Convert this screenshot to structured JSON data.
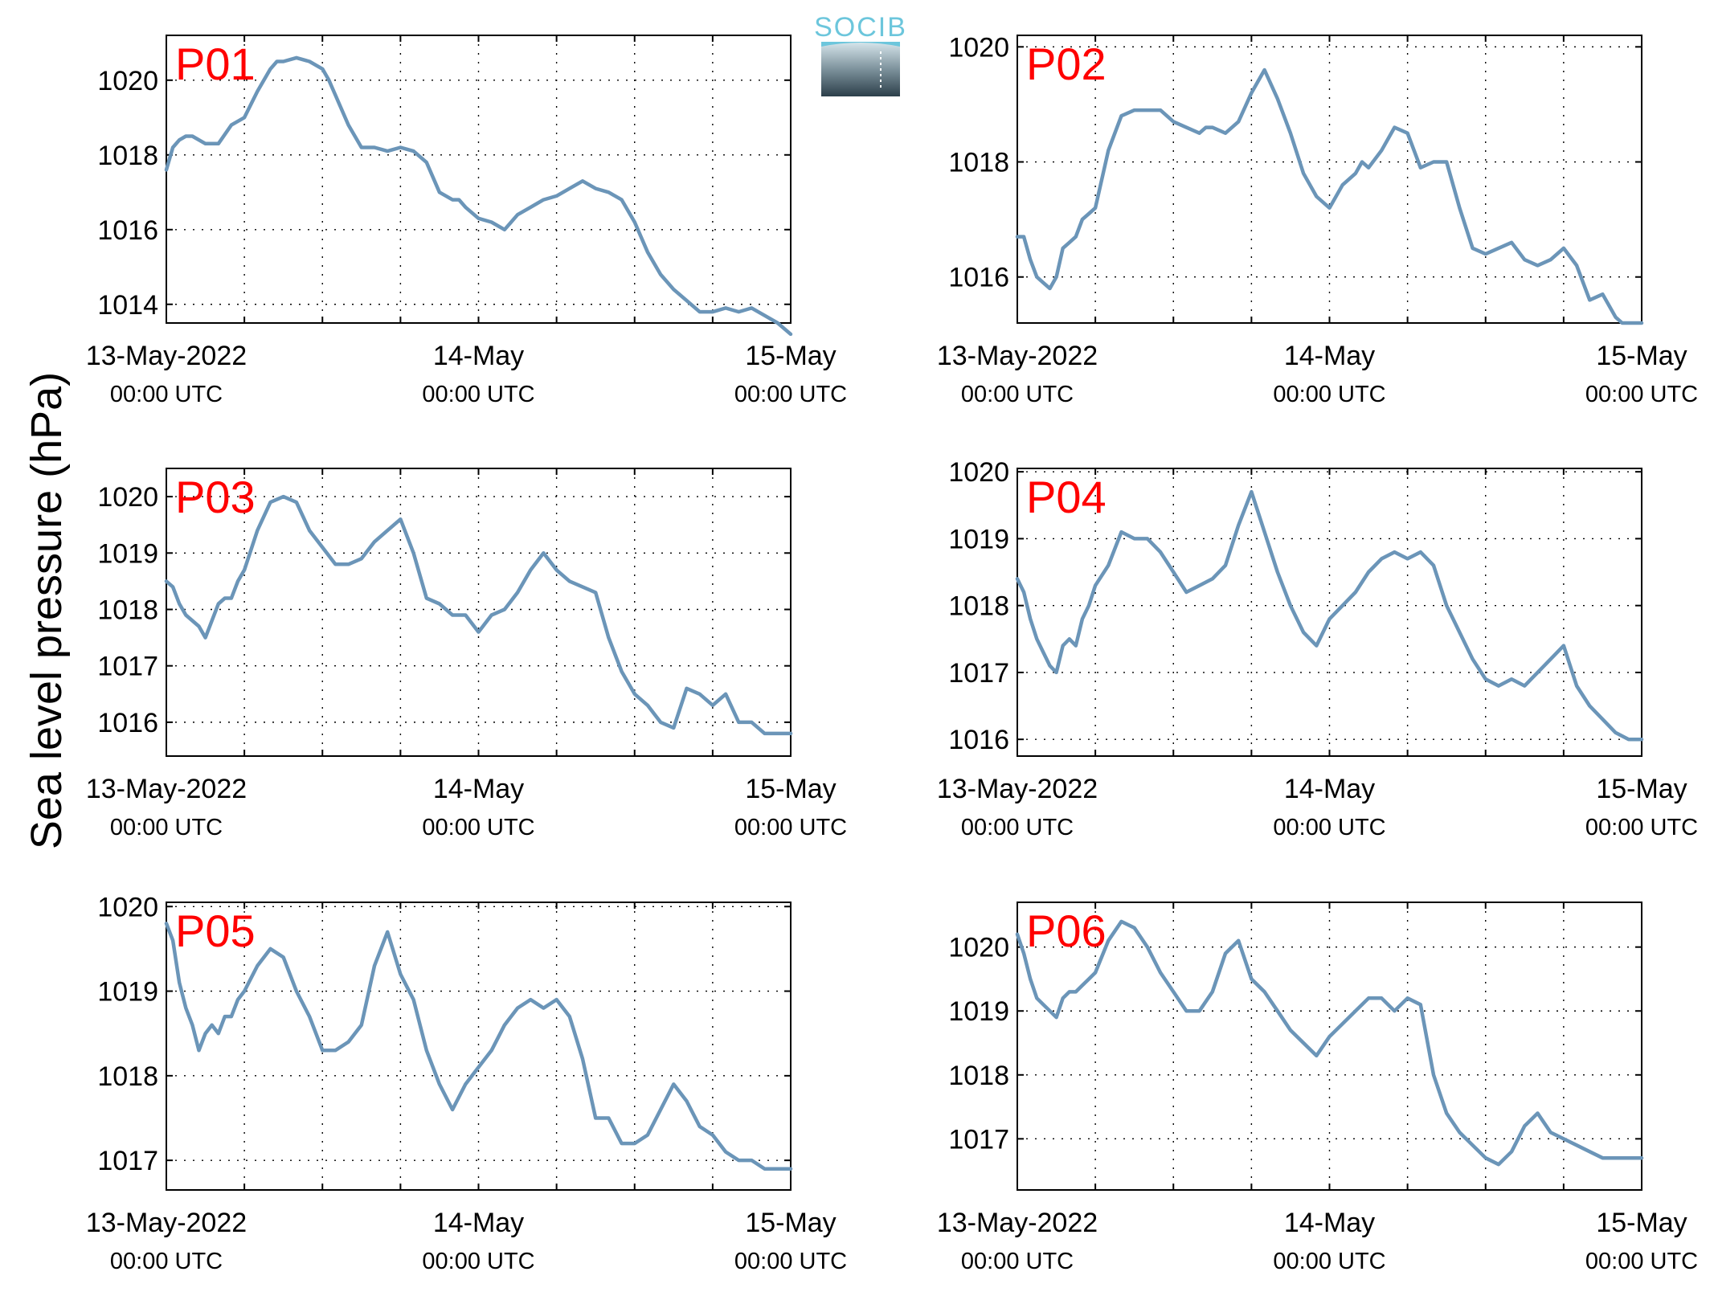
{
  "ylabel": "Sea level pressure (hPa)",
  "logo": {
    "text": "SOCIB"
  },
  "colors": {
    "line": "#6b95b8",
    "panel_label": "#ff0000",
    "grid": "#000000"
  },
  "x_tick_labels": [
    {
      "date": "13-May-2022",
      "time": "00:00 UTC"
    },
    {
      "date": "14-May",
      "time": "00:00 UTC"
    },
    {
      "date": "15-May",
      "time": "00:00 UTC"
    }
  ],
  "chart_data": [
    {
      "type": "line",
      "title": "P01",
      "xlabel": "",
      "ylabel": "Sea level pressure (hPa)",
      "xlim": [
        0,
        48
      ],
      "ylim": [
        1013.5,
        1021.2
      ],
      "yticks": [
        1014,
        1016,
        1018,
        1020
      ],
      "grid": true,
      "series": [
        {
          "x": [
            0,
            0.5,
            1,
            1.5,
            2,
            3,
            4,
            5,
            6,
            7,
            8,
            8.5,
            9,
            10,
            11,
            12,
            12.5,
            13,
            14,
            15,
            16,
            17,
            18,
            19,
            20,
            21,
            22,
            22.5,
            23,
            24,
            25,
            26,
            27,
            28,
            29,
            30,
            31,
            32,
            33,
            34,
            35,
            36,
            37,
            38,
            39,
            40,
            41,
            42,
            43,
            44,
            45,
            46,
            47,
            48
          ],
          "y": [
            1017.6,
            1018.2,
            1018.4,
            1018.5,
            1018.5,
            1018.3,
            1018.3,
            1018.8,
            1019.0,
            1019.7,
            1020.3,
            1020.5,
            1020.5,
            1020.6,
            1020.5,
            1020.3,
            1020.0,
            1019.6,
            1018.8,
            1018.2,
            1018.2,
            1018.1,
            1018.2,
            1018.1,
            1017.8,
            1017.0,
            1016.8,
            1016.8,
            1016.6,
            1016.3,
            1016.2,
            1016.0,
            1016.4,
            1016.6,
            1016.8,
            1016.9,
            1017.1,
            1017.3,
            1017.1,
            1017.0,
            1016.8,
            1016.2,
            1015.4,
            1014.8,
            1014.4,
            1014.1,
            1013.8,
            1013.8,
            1013.9,
            1013.8,
            1013.9,
            1013.7,
            1013.5,
            1013.2
          ]
        }
      ]
    },
    {
      "type": "line",
      "title": "P02",
      "xlabel": "",
      "ylabel": "Sea level pressure (hPa)",
      "xlim": [
        0,
        48
      ],
      "ylim": [
        1015.2,
        1020.2
      ],
      "yticks": [
        1016,
        1018,
        1020
      ],
      "grid": true,
      "series": [
        {
          "x": [
            0,
            0.5,
            1,
            1.5,
            2,
            2.5,
            3,
            3.5,
            4,
            4.5,
            5,
            5.5,
            6,
            7,
            8,
            9,
            10,
            11,
            12,
            13,
            14,
            14.5,
            15,
            16,
            17,
            18,
            19,
            20,
            21,
            22,
            23,
            24,
            25,
            26,
            26.5,
            27,
            28,
            29,
            30,
            31,
            32,
            33,
            34,
            35,
            36,
            37,
            38,
            39,
            40,
            41,
            42,
            43,
            44,
            45,
            46,
            46.5,
            47,
            47.5,
            48
          ],
          "y": [
            1016.7,
            1016.7,
            1016.3,
            1016.0,
            1015.9,
            1015.8,
            1016.0,
            1016.5,
            1016.6,
            1016.7,
            1017.0,
            1017.1,
            1017.2,
            1018.2,
            1018.8,
            1018.9,
            1018.9,
            1018.9,
            1018.7,
            1018.6,
            1018.5,
            1018.6,
            1018.6,
            1018.5,
            1018.7,
            1019.2,
            1019.6,
            1019.1,
            1018.5,
            1017.8,
            1017.4,
            1017.2,
            1017.6,
            1017.8,
            1018.0,
            1017.9,
            1018.2,
            1018.6,
            1018.5,
            1017.9,
            1018.0,
            1018.0,
            1017.2,
            1016.5,
            1016.4,
            1016.5,
            1016.6,
            1016.3,
            1016.2,
            1016.3,
            1016.5,
            1016.2,
            1015.6,
            1015.7,
            1015.3,
            1015.2,
            1015.2,
            1015.2,
            1015.2
          ]
        }
      ]
    },
    {
      "type": "line",
      "title": "P03",
      "xlabel": "",
      "ylabel": "Sea level pressure (hPa)",
      "xlim": [
        0,
        48
      ],
      "ylim": [
        1015.4,
        1020.5
      ],
      "yticks": [
        1016,
        1017,
        1018,
        1019,
        1020
      ],
      "grid": true,
      "series": [
        {
          "x": [
            0,
            0.5,
            1,
            1.5,
            2,
            2.5,
            3,
            3.5,
            4,
            4.5,
            5,
            5.5,
            6,
            7,
            8,
            9,
            10,
            11,
            12,
            13,
            14,
            15,
            16,
            17,
            18,
            19,
            20,
            21,
            22,
            23,
            24,
            25,
            26,
            27,
            28,
            29,
            30,
            31,
            32,
            33,
            34,
            35,
            36,
            37,
            38,
            39,
            40,
            41,
            42,
            43,
            44,
            45,
            46,
            47,
            48
          ],
          "y": [
            1018.5,
            1018.4,
            1018.1,
            1017.9,
            1017.8,
            1017.7,
            1017.5,
            1017.8,
            1018.1,
            1018.2,
            1018.2,
            1018.5,
            1018.7,
            1019.4,
            1019.9,
            1020.0,
            1019.9,
            1019.4,
            1019.1,
            1018.8,
            1018.8,
            1018.9,
            1019.2,
            1019.4,
            1019.6,
            1019.0,
            1018.2,
            1018.1,
            1017.9,
            1017.9,
            1017.6,
            1017.9,
            1018.0,
            1018.3,
            1018.7,
            1019.0,
            1018.7,
            1018.5,
            1018.4,
            1018.3,
            1017.5,
            1016.9,
            1016.5,
            1016.3,
            1016.0,
            1015.9,
            1016.6,
            1016.5,
            1016.3,
            1016.5,
            1016.0,
            1016.0,
            1015.8,
            1015.8,
            1015.8
          ]
        }
      ]
    },
    {
      "type": "line",
      "title": "P04",
      "xlabel": "",
      "ylabel": "Sea level pressure (hPa)",
      "xlim": [
        0,
        48
      ],
      "ylim": [
        1015.75,
        1020.05
      ],
      "yticks": [
        1016,
        1017,
        1018,
        1019,
        1020
      ],
      "grid": true,
      "series": [
        {
          "x": [
            0,
            0.5,
            1,
            1.5,
            2,
            2.5,
            3,
            3.5,
            4,
            4.5,
            5,
            5.5,
            6,
            7,
            8,
            9,
            10,
            11,
            12,
            13,
            14,
            15,
            16,
            17,
            18,
            19,
            20,
            21,
            22,
            23,
            24,
            25,
            26,
            27,
            28,
            29,
            30,
            31,
            32,
            33,
            34,
            35,
            36,
            37,
            38,
            39,
            40,
            41,
            42,
            43,
            44,
            45,
            46,
            47,
            48
          ],
          "y": [
            1018.4,
            1018.2,
            1017.8,
            1017.5,
            1017.3,
            1017.1,
            1017.0,
            1017.4,
            1017.5,
            1017.4,
            1017.8,
            1018.0,
            1018.3,
            1018.6,
            1019.1,
            1019.0,
            1019.0,
            1018.8,
            1018.5,
            1018.2,
            1018.3,
            1018.4,
            1018.6,
            1019.2,
            1019.7,
            1019.1,
            1018.5,
            1018.0,
            1017.6,
            1017.4,
            1017.8,
            1018.0,
            1018.2,
            1018.5,
            1018.7,
            1018.8,
            1018.7,
            1018.8,
            1018.6,
            1018.0,
            1017.6,
            1017.2,
            1016.9,
            1016.8,
            1016.9,
            1016.8,
            1017.0,
            1017.2,
            1017.4,
            1016.8,
            1016.5,
            1016.3,
            1016.1,
            1016.0,
            1016.0
          ]
        }
      ]
    },
    {
      "type": "line",
      "title": "P05",
      "xlabel": "",
      "ylabel": "Sea level pressure (hPa)",
      "xlim": [
        0,
        48
      ],
      "ylim": [
        1016.65,
        1020.05
      ],
      "yticks": [
        1017,
        1018,
        1019,
        1020
      ],
      "grid": true,
      "series": [
        {
          "x": [
            0,
            0.5,
            1,
            1.5,
            2,
            2.5,
            3,
            3.5,
            4,
            4.5,
            5,
            5.5,
            6,
            7,
            8,
            9,
            10,
            11,
            12,
            13,
            14,
            15,
            16,
            17,
            18,
            19,
            20,
            21,
            22,
            23,
            24,
            25,
            26,
            27,
            28,
            29,
            30,
            31,
            32,
            33,
            34,
            35,
            36,
            37,
            38,
            39,
            40,
            41,
            42,
            43,
            44,
            45,
            46,
            47,
            48
          ],
          "y": [
            1019.8,
            1019.6,
            1019.1,
            1018.8,
            1018.6,
            1018.3,
            1018.5,
            1018.6,
            1018.5,
            1018.7,
            1018.7,
            1018.9,
            1019.0,
            1019.3,
            1019.5,
            1019.4,
            1019.0,
            1018.7,
            1018.3,
            1018.3,
            1018.4,
            1018.6,
            1019.3,
            1019.7,
            1019.2,
            1018.9,
            1018.3,
            1017.9,
            1017.6,
            1017.9,
            1018.1,
            1018.3,
            1018.6,
            1018.8,
            1018.9,
            1018.8,
            1018.9,
            1018.7,
            1018.2,
            1017.5,
            1017.5,
            1017.2,
            1017.2,
            1017.3,
            1017.6,
            1017.9,
            1017.7,
            1017.4,
            1017.3,
            1017.1,
            1017.0,
            1017.0,
            1016.9,
            1016.9,
            1016.9
          ]
        }
      ]
    },
    {
      "type": "line",
      "title": "P06",
      "xlabel": "",
      "ylabel": "Sea level pressure (hPa)",
      "xlim": [
        0,
        48
      ],
      "ylim": [
        1016.2,
        1020.7
      ],
      "yticks": [
        1017,
        1018,
        1019,
        1020
      ],
      "grid": true,
      "series": [
        {
          "x": [
            0,
            0.5,
            1,
            1.5,
            2,
            2.5,
            3,
            3.5,
            4,
            4.5,
            5,
            5.5,
            6,
            7,
            8,
            9,
            10,
            11,
            12,
            13,
            14,
            15,
            16,
            17,
            18,
            19,
            20,
            21,
            22,
            23,
            24,
            25,
            26,
            27,
            28,
            29,
            30,
            31,
            32,
            33,
            34,
            35,
            36,
            37,
            38,
            39,
            40,
            41,
            42,
            43,
            44,
            45,
            46,
            47,
            48
          ],
          "y": [
            1020.2,
            1019.9,
            1019.5,
            1019.2,
            1019.1,
            1019.0,
            1018.9,
            1019.2,
            1019.3,
            1019.3,
            1019.4,
            1019.5,
            1019.6,
            1020.1,
            1020.4,
            1020.3,
            1020.0,
            1019.6,
            1019.3,
            1019.0,
            1019.0,
            1019.3,
            1019.9,
            1020.1,
            1019.5,
            1019.3,
            1019.0,
            1018.7,
            1018.5,
            1018.3,
            1018.6,
            1018.8,
            1019.0,
            1019.2,
            1019.2,
            1019.0,
            1019.2,
            1019.1,
            1018.0,
            1017.4,
            1017.1,
            1016.9,
            1016.7,
            1016.6,
            1016.8,
            1017.2,
            1017.4,
            1017.1,
            1017.0,
            1016.9,
            1016.8,
            1016.7,
            1016.7,
            1016.7,
            1016.7
          ]
        }
      ]
    }
  ]
}
